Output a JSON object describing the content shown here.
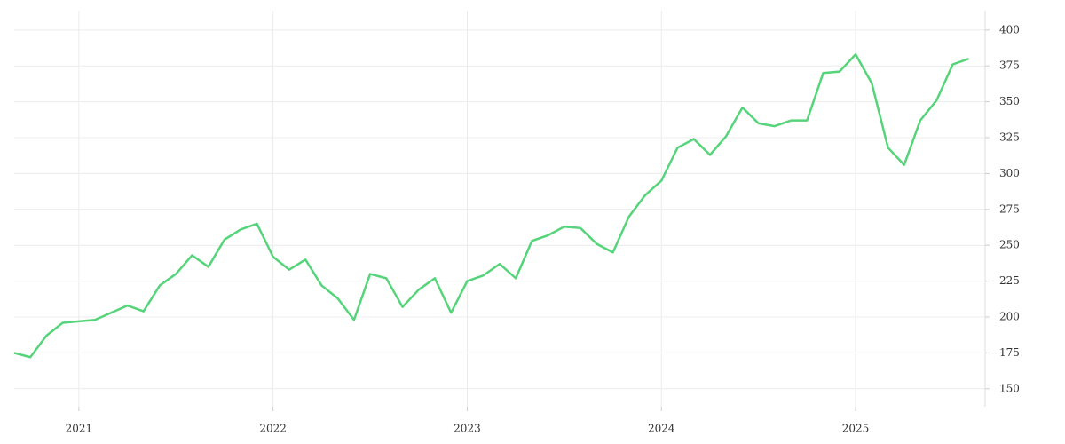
{
  "chart_data": {
    "type": "line",
    "x": [
      2020.667,
      2020.75,
      2020.833,
      2020.917,
      2021.0,
      2021.083,
      2021.167,
      2021.25,
      2021.333,
      2021.417,
      2021.5,
      2021.583,
      2021.667,
      2021.75,
      2021.833,
      2021.917,
      2022.0,
      2022.083,
      2022.167,
      2022.25,
      2022.333,
      2022.417,
      2022.5,
      2022.583,
      2022.667,
      2022.75,
      2022.833,
      2022.917,
      2023.0,
      2023.083,
      2023.167,
      2023.25,
      2023.333,
      2023.417,
      2023.5,
      2023.583,
      2023.667,
      2023.75,
      2023.833,
      2023.917,
      2024.0,
      2024.083,
      2024.167,
      2024.25,
      2024.333,
      2024.417,
      2024.5,
      2024.583,
      2024.667,
      2024.75,
      2024.833,
      2024.917,
      2025.0,
      2025.083,
      2025.167,
      2025.25,
      2025.333,
      2025.417,
      2025.5,
      2025.583
    ],
    "series": [
      {
        "color": "#55d47a",
        "values": [
          175,
          172,
          187,
          196,
          197,
          198,
          203,
          208,
          204,
          222,
          230,
          243,
          235,
          254,
          261,
          265,
          242,
          233,
          240,
          222,
          213,
          198,
          230,
          227,
          207,
          219,
          227,
          203,
          225,
          229,
          237,
          227,
          253,
          257,
          263,
          262,
          251,
          245,
          270,
          285,
          295,
          318,
          324,
          313,
          326,
          346,
          335,
          333,
          337,
          337,
          370,
          371,
          383,
          363,
          318,
          306,
          337,
          351,
          376,
          380
        ]
      }
    ],
    "xlim": [
      2020.667,
      2025.667
    ],
    "xticks": [
      2021,
      2022,
      2023,
      2024,
      2025
    ],
    "ylim": [
      137.5,
      413.5
    ],
    "yticks": [
      150,
      175,
      200,
      225,
      250,
      275,
      300,
      325,
      350,
      375,
      400
    ],
    "grid": true
  }
}
